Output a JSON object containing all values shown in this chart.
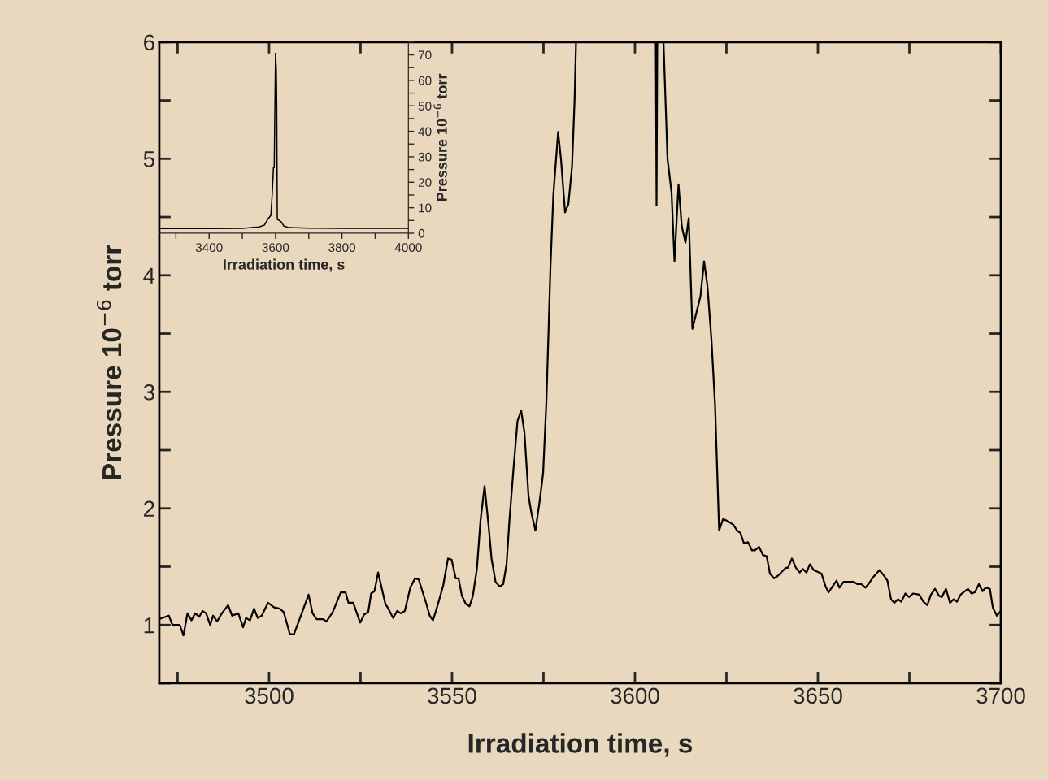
{
  "chart_data": [
    {
      "type": "line",
      "xlabel": "Irradiation time, s",
      "ylabel": "Pressure 10$^{−6}$ torr",
      "xlim": [
        3470,
        3700
      ],
      "ylim": [
        0.5,
        6
      ],
      "xticks": [
        {
          "value": 3475,
          "label": null
        },
        3500,
        {
          "value": 3525,
          "label": null
        },
        3550,
        {
          "value": 3575,
          "label": null
        },
        3600,
        {
          "value": 3625,
          "label": null
        },
        3650,
        {
          "value": 3675,
          "label": null
        },
        {
          "value": 3700,
          "label": "3700"
        }
      ],
      "yticks": [
        {
          "value": 0.5,
          "label": null
        },
        1,
        {
          "value": 1.5,
          "label": null
        },
        2,
        {
          "value": 2.5,
          "label": null
        },
        3,
        {
          "value": 3.5,
          "label": null
        },
        4,
        {
          "value": 4.5,
          "label": null
        },
        5,
        {
          "value": 5.5,
          "label": null
        },
        6
      ],
      "grid": false,
      "line_style": "solid",
      "marker": "none",
      "series": [
        {
          "color": "#000000",
          "x": [
            3470,
            3472.6,
            3473.6,
            3475.6,
            3476.6,
            3477.7,
            3478.8,
            3479.8,
            3480.9,
            3481.8,
            3482.8,
            3483.9,
            3484.7,
            3485.8,
            3487.1,
            3488.8,
            3489.9,
            3491.6,
            3492.9,
            3493.7,
            3494.8,
            3495.9,
            3496.9,
            3498.0,
            3499.7,
            3501.4,
            3502.9,
            3504.0,
            3505.7,
            3506.8,
            3508.7,
            3510.8,
            3511.9,
            3513.0,
            3514.7,
            3515.7,
            3517.4,
            3519.6,
            3520.9,
            3521.7,
            3523.0,
            3524.9,
            3526.0,
            3527.1,
            3527.9,
            3528.8,
            3529.8,
            3531.8,
            3532.6,
            3533.9,
            3535.0,
            3536.0,
            3537.1,
            3538.6,
            3539.9,
            3540.9,
            3542.9,
            3543.9,
            3544.8,
            3545.9,
            3547.6,
            3548.9,
            3549.9,
            3551.0,
            3551.8,
            3552.7,
            3553.8,
            3554.8,
            3555.7,
            3556.8,
            3557.8,
            3558.9,
            3560.0,
            3560.8,
            3561.9,
            3563.0,
            3564.0,
            3564.9,
            3565.7,
            3566.8,
            3567.9,
            3568.9,
            3569.8,
            3570.9,
            3571.7,
            3572.8,
            3573.9,
            3574.9,
            3575.8,
            3576.9,
            3577.7,
            3579.0,
            3579.8,
            3580.9,
            3581.8,
            3582.8,
            3583.5,
            3583.9,
            3595,
            3605.7,
            3605.9,
            3606.1,
            3607,
            3607.8,
            3608.9,
            3610.0,
            3610.8,
            3611.9,
            3612.8,
            3613.8,
            3614.7,
            3615.7,
            3617.9,
            3618.9,
            3619.8,
            3620.9,
            3621.9,
            3623.0,
            3624.1,
            3625.4,
            3626.9,
            3627.9,
            3628.8,
            3629.8,
            3630.9,
            3632.0,
            3632.8,
            3633.9,
            3635.0,
            3636.0,
            3636.9,
            3638.0,
            3639.0,
            3641.2,
            3641.8,
            3642.9,
            3644.0,
            3645.0,
            3645.9,
            3646.9,
            3647.8,
            3648.9,
            3651.0,
            3652.1,
            3652.9,
            3655.1,
            3655.9,
            3657.0,
            3659.8,
            3660.8,
            3661.9,
            3663.0,
            3663.8,
            3665.1,
            3666.8,
            3667.9,
            3669.0,
            3670.0,
            3670.9,
            3671.9,
            3672.8,
            3673.9,
            3674.9,
            3676.0,
            3677.7,
            3678.8,
            3679.9,
            3680.9,
            3682.0,
            3683.1,
            3683.9,
            3685.0,
            3686.1,
            3687.1,
            3688.0,
            3689.0,
            3691.0,
            3692.0,
            3692.9,
            3694.0,
            3695.0,
            3695.9,
            3697.0,
            3697.8,
            3698.9,
            3700
          ],
          "values": [
            1.05,
            1.08,
            1.0,
            1.0,
            0.91,
            1.1,
            1.04,
            1.1,
            1.07,
            1.12,
            1.1,
            1.0,
            1.08,
            1.03,
            1.1,
            1.17,
            1.08,
            1.1,
            0.98,
            1.06,
            1.04,
            1.14,
            1.06,
            1.08,
            1.19,
            1.15,
            1.14,
            1.11,
            0.92,
            0.92,
            1.08,
            1.26,
            1.1,
            1.05,
            1.05,
            1.03,
            1.11,
            1.28,
            1.28,
            1.19,
            1.19,
            1.02,
            1.09,
            1.11,
            1.27,
            1.29,
            1.45,
            1.18,
            1.14,
            1.06,
            1.12,
            1.1,
            1.12,
            1.32,
            1.4,
            1.39,
            1.19,
            1.08,
            1.04,
            1.15,
            1.34,
            1.57,
            1.56,
            1.4,
            1.4,
            1.25,
            1.18,
            1.16,
            1.25,
            1.48,
            1.9,
            2.19,
            1.85,
            1.57,
            1.37,
            1.33,
            1.35,
            1.52,
            1.9,
            2.34,
            2.75,
            2.84,
            2.65,
            2.11,
            1.96,
            1.81,
            2.05,
            2.3,
            2.92,
            4.06,
            4.69,
            5.23,
            4.99,
            4.54,
            4.61,
            4.93,
            5.5,
            6.0,
            null,
            6.0,
            4.6,
            6.0,
            null,
            6.0,
            5.0,
            4.71,
            4.12,
            4.78,
            4.42,
            4.28,
            4.49,
            3.54,
            3.82,
            4.12,
            3.91,
            3.45,
            2.88,
            1.81,
            1.91,
            1.89,
            1.86,
            1.81,
            1.79,
            1.7,
            1.71,
            1.64,
            1.64,
            1.67,
            1.6,
            1.59,
            1.44,
            1.4,
            1.42,
            1.49,
            1.49,
            1.57,
            1.49,
            1.45,
            1.48,
            1.45,
            1.52,
            1.47,
            1.44,
            1.33,
            1.28,
            1.38,
            1.32,
            1.37,
            1.37,
            1.35,
            1.35,
            1.32,
            1.35,
            1.41,
            1.47,
            1.43,
            1.38,
            1.22,
            1.19,
            1.22,
            1.2,
            1.27,
            1.24,
            1.27,
            1.26,
            1.2,
            1.17,
            1.26,
            1.31,
            1.25,
            1.24,
            1.31,
            1.19,
            1.22,
            1.2,
            1.26,
            1.31,
            1.27,
            1.28,
            1.35,
            1.29,
            1.32,
            1.31,
            1.15,
            1.08,
            1.12
          ]
        }
      ]
    },
    {
      "type": "line",
      "xlabel": "Irradiation time, s",
      "y2label": "Pressure 10$^{−6}$ torr",
      "xlim": [
        3250,
        4000
      ],
      "y2lim": [
        0,
        75
      ],
      "xticks": [
        {
          "value": 3300,
          "label": null
        },
        3400,
        {
          "value": 3500,
          "label": null
        },
        3600,
        {
          "value": 3700,
          "label": null
        },
        3800,
        {
          "value": 3900,
          "label": null
        },
        4000
      ],
      "y2ticks": [
        0,
        {
          "value": 5,
          "label": null
        },
        10,
        {
          "value": 15,
          "label": null
        },
        20,
        {
          "value": 25,
          "label": null
        },
        30,
        {
          "value": 35,
          "label": null
        },
        40,
        {
          "value": 45,
          "label": null
        },
        50,
        {
          "value": 55,
          "label": null
        },
        60,
        {
          "value": 65,
          "label": null
        },
        70,
        {
          "value": 75,
          "label": null
        }
      ],
      "grid": false,
      "line_style": "solid",
      "marker": "none",
      "series": [
        {
          "color": "#000000",
          "axis": "y2",
          "x": [
            3254,
            3400,
            3500,
            3550,
            3566.5,
            3576.7,
            3586,
            3589.8,
            3593.7,
            3596,
            3600,
            3602.3,
            3603.5,
            3605.3,
            3617,
            3624.7,
            3640,
            3700,
            3800,
            4000
          ],
          "values": [
            1.8,
            1.8,
            1.9,
            2.5,
            3.2,
            5.5,
            7.0,
            15,
            25.7,
            25.7,
            70.6,
            64,
            51,
            5.5,
            4.5,
            2.9,
            2.2,
            2.0,
            1.9,
            1.9
          ]
        }
      ]
    }
  ]
}
